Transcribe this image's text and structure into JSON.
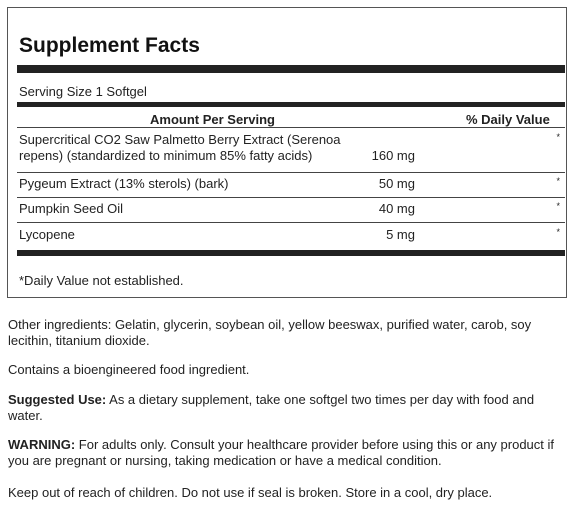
{
  "facts": {
    "title": "Supplement Facts",
    "serving_size": "Serving Size 1 Softgel",
    "col_amount": "Amount Per Serving",
    "col_dv": "% Daily Value",
    "rows": [
      {
        "name": "Supercritical CO2 Saw Palmetto Berry Extract (Serenoa repens) (standardized to minimum 85% fatty acids)",
        "line1": "Supercritical CO2 Saw Palmetto Berry Extract (Serenoa",
        "line2": "repens) (standardized to minimum 85% fatty acids)",
        "amount": "160 mg",
        "dv": "*"
      },
      {
        "name": "Pygeum Extract (13% sterols) (bark)",
        "amount": "50 mg",
        "dv": "*"
      },
      {
        "name": "Pumpkin Seed Oil",
        "amount": "40 mg",
        "dv": "*"
      },
      {
        "name": "Lycopene",
        "amount": "5 mg",
        "dv": "*"
      }
    ],
    "footnote": "*Daily Value not established."
  },
  "other_ingredients": "Other ingredients: Gelatin, glycerin, soybean oil, yellow beeswax, purified water, carob, soy lecithin, titanium dioxide.",
  "bioengineered": "Contains a bioengineered food ingredient.",
  "suggested_use": {
    "label": "Suggested Use:",
    "text": " As a dietary supplement, take one softgel two times per day with food and water."
  },
  "warning": {
    "label": "WARNING:",
    "text": " For adults only. Consult your healthcare provider before using this or any product if you are pregnant or nursing, taking medication or have a medical condition."
  },
  "storage": "Keep out of reach of children. Do not use if seal is broken. Store in a cool, dry place."
}
